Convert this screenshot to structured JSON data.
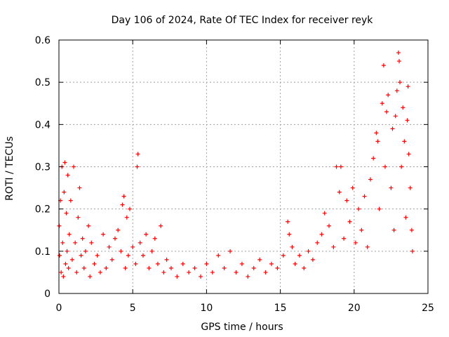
{
  "chart_data": {
    "type": "scatter",
    "title": "Day 106 of 2024, Rate Of TEC Index for receiver reyk",
    "xlabel": "GPS time / hours",
    "ylabel": "ROTI / TECUs",
    "xlim": [
      0,
      25
    ],
    "ylim": [
      0,
      0.6
    ],
    "x_ticks": [
      0,
      5,
      10,
      15,
      20,
      25
    ],
    "x_tick_labels": [
      "0",
      "5",
      "10",
      "15",
      "20",
      "25"
    ],
    "y_ticks": [
      0,
      0.1,
      0.2,
      0.3,
      0.4,
      0.5,
      0.6
    ],
    "y_tick_labels": [
      "0",
      "0.1",
      "0.2",
      "0.3",
      "0.4",
      "0.5",
      "0.6"
    ],
    "grid": true,
    "marker": "+",
    "color": "#ff0000",
    "series": [
      {
        "name": "ROTI",
        "points": [
          [
            0.02,
            0.16
          ],
          [
            0.05,
            0.09
          ],
          [
            0.1,
            0.22
          ],
          [
            0.15,
            0.05
          ],
          [
            0.2,
            0.3
          ],
          [
            0.25,
            0.12
          ],
          [
            0.3,
            0.04
          ],
          [
            0.35,
            0.24
          ],
          [
            0.4,
            0.31
          ],
          [
            0.45,
            0.07
          ],
          [
            0.5,
            0.19
          ],
          [
            0.55,
            0.1
          ],
          [
            0.6,
            0.28
          ],
          [
            0.65,
            0.06
          ],
          [
            0.7,
            0.14
          ],
          [
            0.8,
            0.22
          ],
          [
            0.9,
            0.08
          ],
          [
            1.0,
            0.3
          ],
          [
            1.1,
            0.12
          ],
          [
            1.2,
            0.05
          ],
          [
            1.3,
            0.18
          ],
          [
            1.4,
            0.25
          ],
          [
            1.5,
            0.09
          ],
          [
            1.6,
            0.13
          ],
          [
            1.7,
            0.06
          ],
          [
            1.8,
            0.1
          ],
          [
            2.0,
            0.16
          ],
          [
            2.1,
            0.04
          ],
          [
            2.2,
            0.12
          ],
          [
            2.4,
            0.07
          ],
          [
            2.6,
            0.09
          ],
          [
            2.8,
            0.05
          ],
          [
            3.0,
            0.14
          ],
          [
            3.2,
            0.06
          ],
          [
            3.4,
            0.11
          ],
          [
            3.6,
            0.08
          ],
          [
            3.8,
            0.13
          ],
          [
            4.0,
            0.15
          ],
          [
            4.2,
            0.1
          ],
          [
            4.3,
            0.21
          ],
          [
            4.4,
            0.23
          ],
          [
            4.5,
            0.06
          ],
          [
            4.6,
            0.18
          ],
          [
            4.7,
            0.09
          ],
          [
            4.8,
            0.2
          ],
          [
            5.0,
            0.11
          ],
          [
            5.2,
            0.07
          ],
          [
            5.3,
            0.3
          ],
          [
            5.35,
            0.33
          ],
          [
            5.5,
            0.12
          ],
          [
            5.7,
            0.09
          ],
          [
            5.9,
            0.14
          ],
          [
            6.1,
            0.06
          ],
          [
            6.3,
            0.1
          ],
          [
            6.5,
            0.13
          ],
          [
            6.7,
            0.07
          ],
          [
            6.9,
            0.16
          ],
          [
            7.1,
            0.05
          ],
          [
            7.3,
            0.08
          ],
          [
            7.6,
            0.06
          ],
          [
            8.0,
            0.04
          ],
          [
            8.4,
            0.07
          ],
          [
            8.8,
            0.05
          ],
          [
            9.2,
            0.06
          ],
          [
            9.6,
            0.04
          ],
          [
            10.0,
            0.07
          ],
          [
            10.4,
            0.05
          ],
          [
            10.8,
            0.09
          ],
          [
            11.2,
            0.06
          ],
          [
            11.6,
            0.1
          ],
          [
            12.0,
            0.05
          ],
          [
            12.4,
            0.07
          ],
          [
            12.8,
            0.04
          ],
          [
            13.2,
            0.06
          ],
          [
            13.6,
            0.08
          ],
          [
            14.0,
            0.05
          ],
          [
            14.4,
            0.07
          ],
          [
            14.8,
            0.06
          ],
          [
            15.2,
            0.09
          ],
          [
            15.5,
            0.17
          ],
          [
            15.6,
            0.14
          ],
          [
            15.8,
            0.11
          ],
          [
            16.0,
            0.07
          ],
          [
            16.3,
            0.09
          ],
          [
            16.6,
            0.06
          ],
          [
            16.9,
            0.1
          ],
          [
            17.2,
            0.08
          ],
          [
            17.5,
            0.12
          ],
          [
            17.8,
            0.14
          ],
          [
            18.0,
            0.19
          ],
          [
            18.3,
            0.16
          ],
          [
            18.6,
            0.11
          ],
          [
            18.8,
            0.3
          ],
          [
            19.0,
            0.24
          ],
          [
            19.1,
            0.3
          ],
          [
            19.3,
            0.13
          ],
          [
            19.5,
            0.22
          ],
          [
            19.7,
            0.17
          ],
          [
            19.9,
            0.25
          ],
          [
            20.1,
            0.12
          ],
          [
            20.3,
            0.2
          ],
          [
            20.5,
            0.15
          ],
          [
            20.7,
            0.23
          ],
          [
            20.9,
            0.11
          ],
          [
            21.1,
            0.27
          ],
          [
            21.3,
            0.32
          ],
          [
            21.5,
            0.38
          ],
          [
            21.6,
            0.36
          ],
          [
            21.7,
            0.2
          ],
          [
            21.9,
            0.45
          ],
          [
            22.0,
            0.54
          ],
          [
            22.1,
            0.3
          ],
          [
            22.2,
            0.43
          ],
          [
            22.3,
            0.47
          ],
          [
            22.5,
            0.25
          ],
          [
            22.6,
            0.39
          ],
          [
            22.7,
            0.15
          ],
          [
            22.8,
            0.42
          ],
          [
            22.9,
            0.48
          ],
          [
            23.0,
            0.57
          ],
          [
            23.05,
            0.55
          ],
          [
            23.1,
            0.5
          ],
          [
            23.2,
            0.3
          ],
          [
            23.3,
            0.44
          ],
          [
            23.4,
            0.36
          ],
          [
            23.5,
            0.18
          ],
          [
            23.6,
            0.41
          ],
          [
            23.65,
            0.49
          ],
          [
            23.7,
            0.33
          ],
          [
            23.8,
            0.25
          ],
          [
            23.9,
            0.15
          ],
          [
            23.95,
            0.1
          ]
        ]
      }
    ]
  }
}
